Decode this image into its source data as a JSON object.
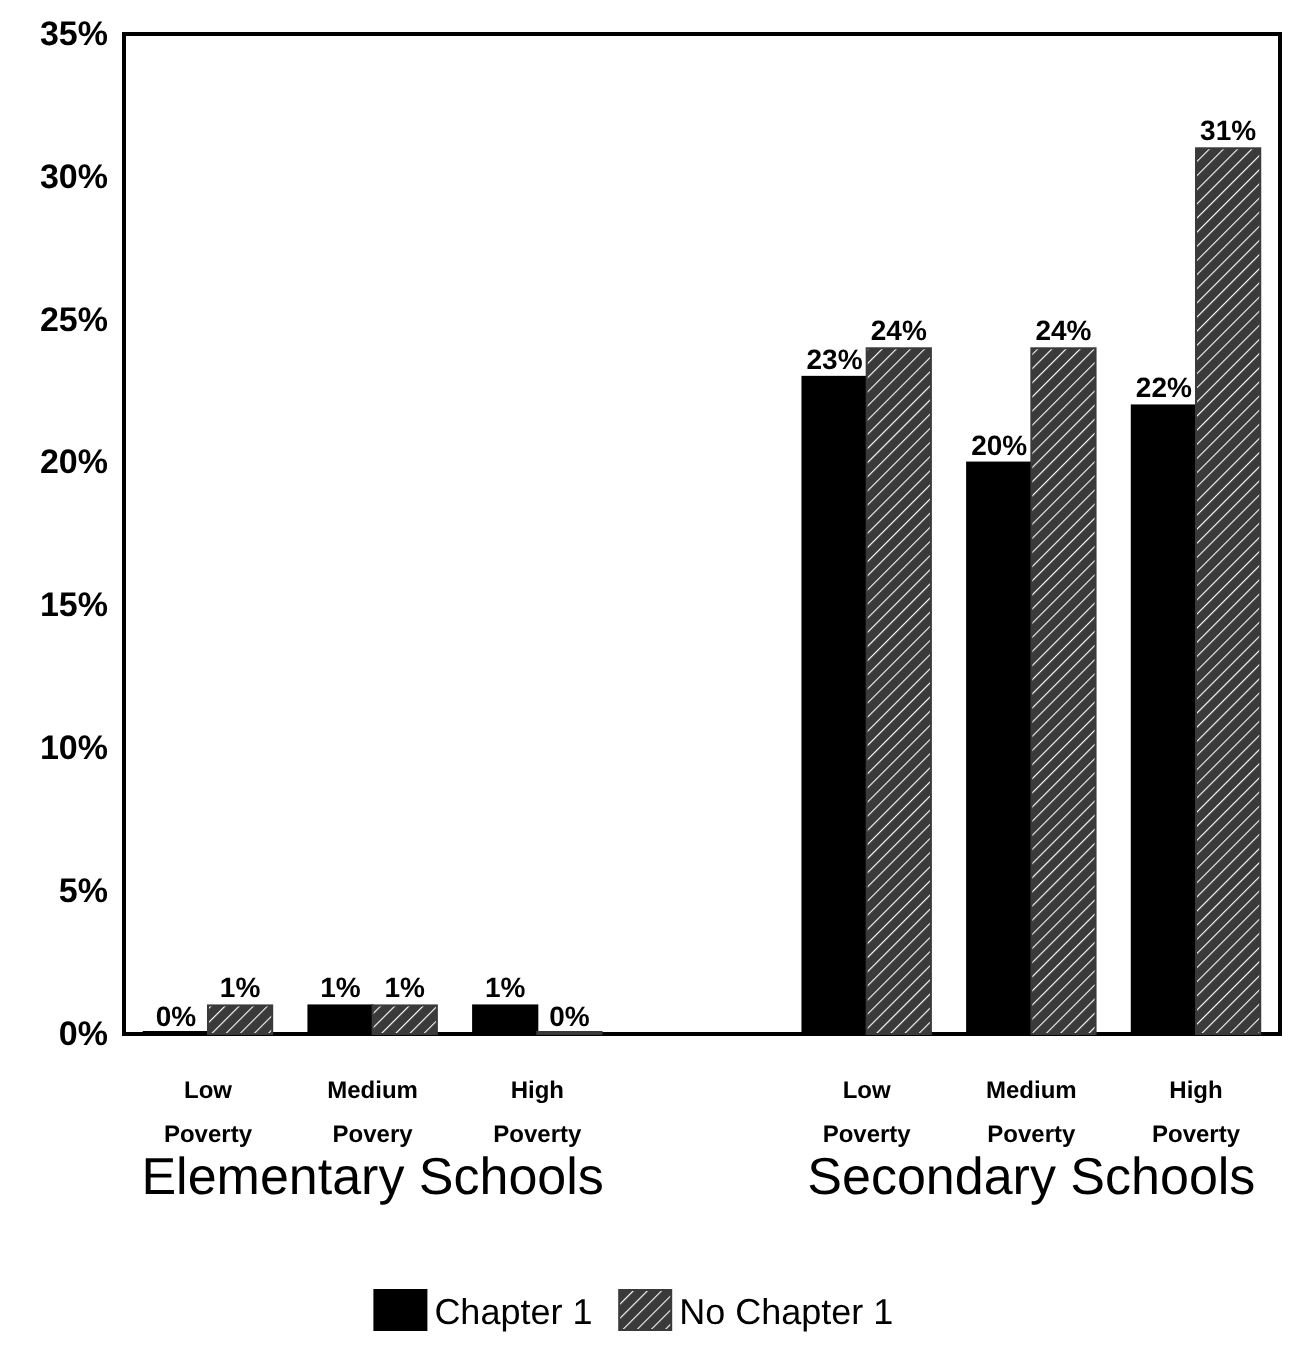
{
  "chart_data": {
    "type": "bar",
    "categories": [
      "Low Poverty",
      "Medium Povery",
      "High Poverty",
      null,
      "Low Poverty",
      "Medium Poverty",
      "High Poverty"
    ],
    "series": [
      {
        "name": "Chapter 1",
        "color": "#000000",
        "values": [
          0,
          1,
          1,
          null,
          23,
          20,
          22
        ],
        "value_labels": [
          "0%",
          "1%",
          "1%",
          null,
          "23%",
          "20%",
          "22%"
        ]
      },
      {
        "name": "No Chapter 1",
        "color": "#3a3a3a",
        "values": [
          1,
          1,
          0,
          null,
          24,
          24,
          31
        ],
        "value_labels": [
          "1%",
          "1%",
          "0%",
          null,
          "24%",
          "24%",
          "31%"
        ]
      }
    ],
    "ylim": [
      0,
      35
    ],
    "yticks": [
      {
        "value": 0,
        "label": "0%"
      },
      {
        "value": 5,
        "label": "5%"
      },
      {
        "value": 10,
        "label": "10%"
      },
      {
        "value": 15,
        "label": "15%"
      },
      {
        "value": 20,
        "label": "20%"
      },
      {
        "value": 25,
        "label": "25%"
      },
      {
        "value": 30,
        "label": "30%"
      },
      {
        "value": 35,
        "label": "35%"
      }
    ],
    "annotations": [
      "Elementary Schools",
      "Secondary Schools"
    ],
    "legend": "bottom"
  }
}
